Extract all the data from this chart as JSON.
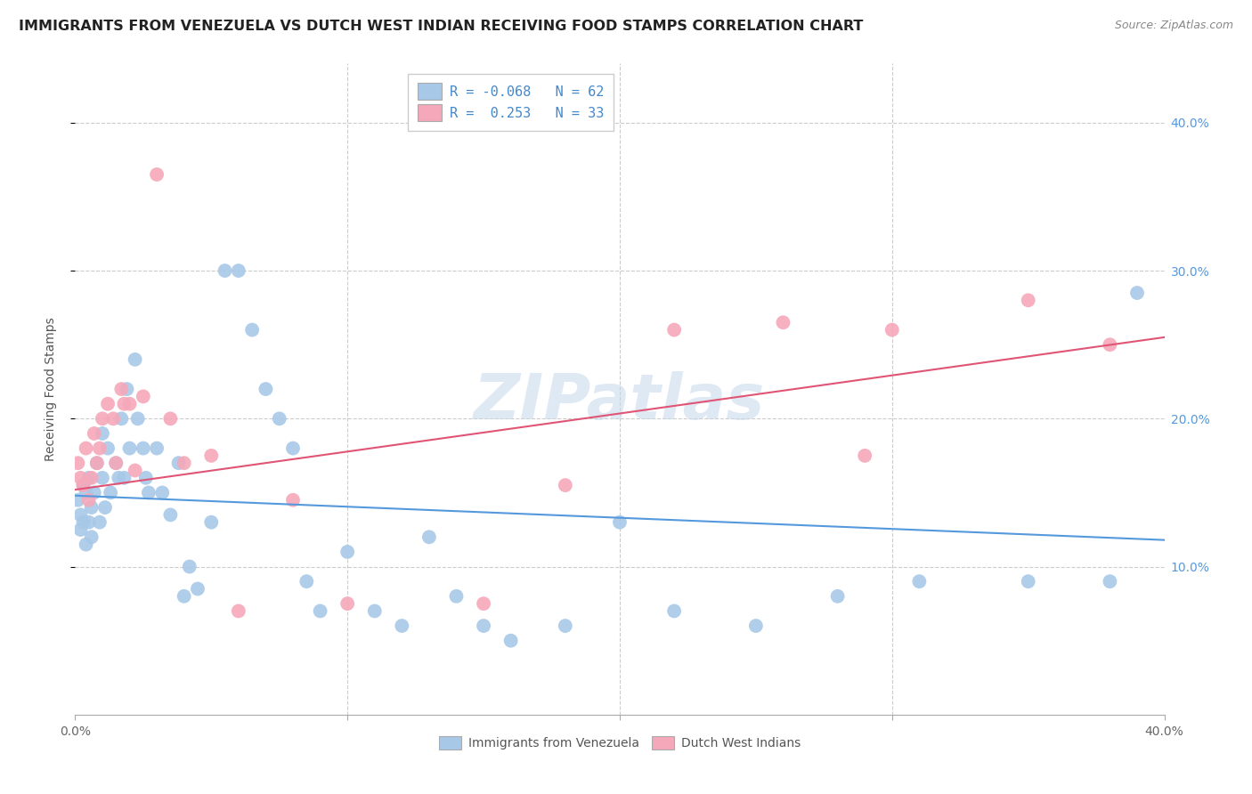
{
  "title": "IMMIGRANTS FROM VENEZUELA VS DUTCH WEST INDIAN RECEIVING FOOD STAMPS CORRELATION CHART",
  "source": "Source: ZipAtlas.com",
  "ylabel": "Receiving Food Stamps",
  "ytick_values": [
    0.1,
    0.2,
    0.3,
    0.4
  ],
  "xlim": [
    0.0,
    0.4
  ],
  "ylim": [
    0.0,
    0.44
  ],
  "legend_label1": "R = -0.068   N = 62",
  "legend_label2": "R =  0.253   N = 33",
  "legend_entry1": "Immigrants from Venezuela",
  "legend_entry2": "Dutch West Indians",
  "watermark": "ZIPatlas",
  "blue_color": "#a8c8e8",
  "pink_color": "#f5a8ba",
  "blue_line_color": "#5599dd",
  "pink_line_color": "#e05575",
  "title_fontsize": 11.5,
  "source_fontsize": 9,
  "blue_x": [
    0.001,
    0.002,
    0.002,
    0.003,
    0.003,
    0.004,
    0.004,
    0.005,
    0.005,
    0.006,
    0.006,
    0.007,
    0.008,
    0.009,
    0.01,
    0.01,
    0.011,
    0.012,
    0.013,
    0.015,
    0.016,
    0.017,
    0.018,
    0.019,
    0.02,
    0.022,
    0.023,
    0.025,
    0.026,
    0.027,
    0.03,
    0.032,
    0.035,
    0.038,
    0.04,
    0.042,
    0.045,
    0.05,
    0.055,
    0.06,
    0.065,
    0.07,
    0.075,
    0.08,
    0.085,
    0.09,
    0.1,
    0.11,
    0.12,
    0.13,
    0.14,
    0.15,
    0.16,
    0.18,
    0.2,
    0.22,
    0.25,
    0.28,
    0.31,
    0.35,
    0.38,
    0.39
  ],
  "blue_y": [
    0.145,
    0.135,
    0.125,
    0.13,
    0.155,
    0.115,
    0.15,
    0.16,
    0.13,
    0.14,
    0.12,
    0.15,
    0.17,
    0.13,
    0.19,
    0.16,
    0.14,
    0.18,
    0.15,
    0.17,
    0.16,
    0.2,
    0.16,
    0.22,
    0.18,
    0.24,
    0.2,
    0.18,
    0.16,
    0.15,
    0.18,
    0.15,
    0.135,
    0.17,
    0.08,
    0.1,
    0.085,
    0.13,
    0.3,
    0.3,
    0.26,
    0.22,
    0.2,
    0.18,
    0.09,
    0.07,
    0.11,
    0.07,
    0.06,
    0.12,
    0.08,
    0.06,
    0.05,
    0.06,
    0.13,
    0.07,
    0.06,
    0.08,
    0.09,
    0.09,
    0.09,
    0.285
  ],
  "pink_x": [
    0.001,
    0.002,
    0.003,
    0.004,
    0.005,
    0.006,
    0.007,
    0.008,
    0.009,
    0.01,
    0.012,
    0.014,
    0.015,
    0.017,
    0.018,
    0.02,
    0.022,
    0.025,
    0.03,
    0.035,
    0.04,
    0.05,
    0.06,
    0.08,
    0.1,
    0.15,
    0.18,
    0.22,
    0.26,
    0.29,
    0.3,
    0.35,
    0.38
  ],
  "pink_y": [
    0.17,
    0.16,
    0.155,
    0.18,
    0.145,
    0.16,
    0.19,
    0.17,
    0.18,
    0.2,
    0.21,
    0.2,
    0.17,
    0.22,
    0.21,
    0.21,
    0.165,
    0.215,
    0.365,
    0.2,
    0.17,
    0.175,
    0.07,
    0.145,
    0.075,
    0.075,
    0.155,
    0.26,
    0.265,
    0.175,
    0.26,
    0.28,
    0.25
  ],
  "blue_trend_x": [
    0.0,
    0.4
  ],
  "blue_trend_y": [
    0.148,
    0.118
  ],
  "pink_trend_x": [
    0.0,
    0.4
  ],
  "pink_trend_y": [
    0.152,
    0.255
  ]
}
